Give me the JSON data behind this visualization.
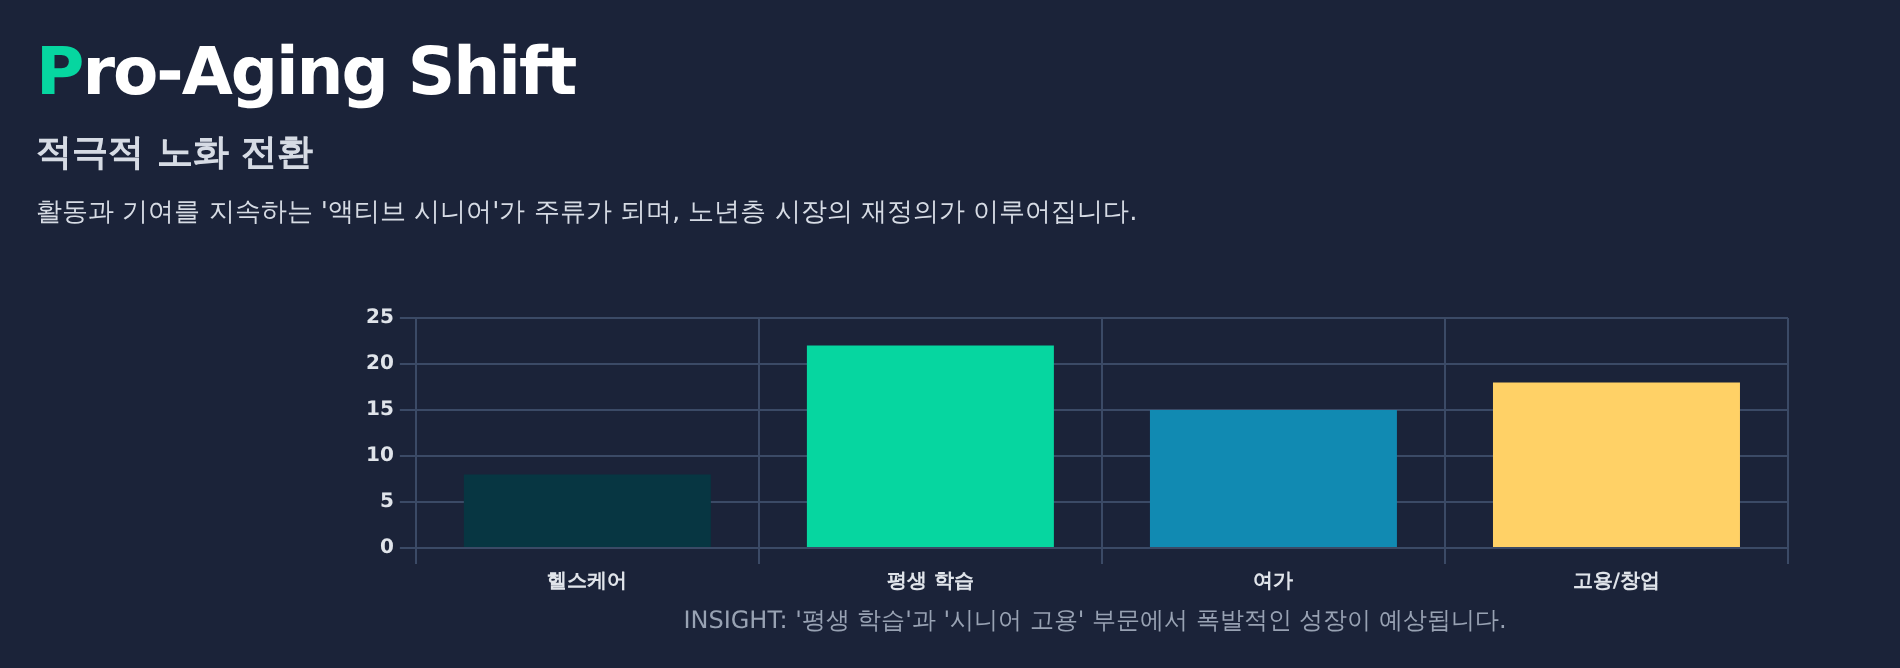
{
  "chart_data": {
    "type": "bar",
    "title": "Pro-Aging Shift",
    "subtitle": "적극적 노화 전환",
    "categories": [
      "헬스케어",
      "평생 학습",
      "여가",
      "고용/창업"
    ],
    "values": [
      8,
      22,
      15,
      18
    ],
    "colors": [
      "#073642",
      "#06d6a0",
      "#118ab2",
      "#ffd166"
    ],
    "ylim": [
      0,
      25
    ],
    "yticks": [
      0,
      5,
      10,
      15,
      20,
      25
    ],
    "grid": true,
    "legend": false,
    "annotations": [
      "활동과 기여를 지속하는 '액티브 시니어'가 주류가 되며, 노년층 시장의 재정의가 이루어집니다.",
      "INSIGHT: '평생 학습'과 '시니어 고용' 부문에서 폭발적인 성장이 예상됩니다."
    ]
  }
}
